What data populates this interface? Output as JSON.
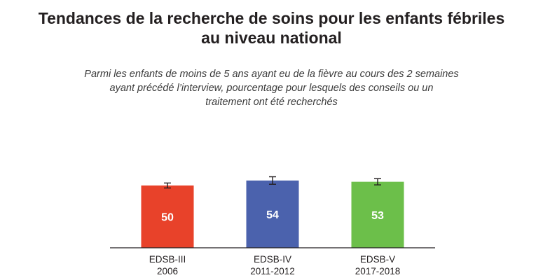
{
  "chart_data": {
    "type": "bar",
    "title_lines": [
      "Tendances de la recherche de soins pour les enfants fébriles",
      "au niveau national"
    ],
    "subtitle_lines": [
      "Parmi les enfants de moins de 5 ans ayant eu de la fièvre au cours des 2 semaines",
      "ayant précédé l’interview, pourcentage pour lesquels des conseils ou un",
      "traitement ont été recherchés"
    ],
    "categories": [
      [
        "EDSB-III",
        "2006"
      ],
      [
        "EDSB-IV",
        "2011-2012"
      ],
      [
        "EDSB-V",
        "2017-2018"
      ]
    ],
    "values": [
      50,
      54,
      53
    ],
    "data_labels": [
      "50",
      "54",
      "53"
    ],
    "error_bars": [
      [
        48,
        52
      ],
      [
        51,
        57
      ],
      [
        50.5,
        55.5
      ]
    ],
    "colors": [
      "#e8422a",
      "#4b62ad",
      "#6cbf4a"
    ],
    "ylim": [
      0,
      100
    ],
    "grid": false,
    "legend": "none"
  }
}
